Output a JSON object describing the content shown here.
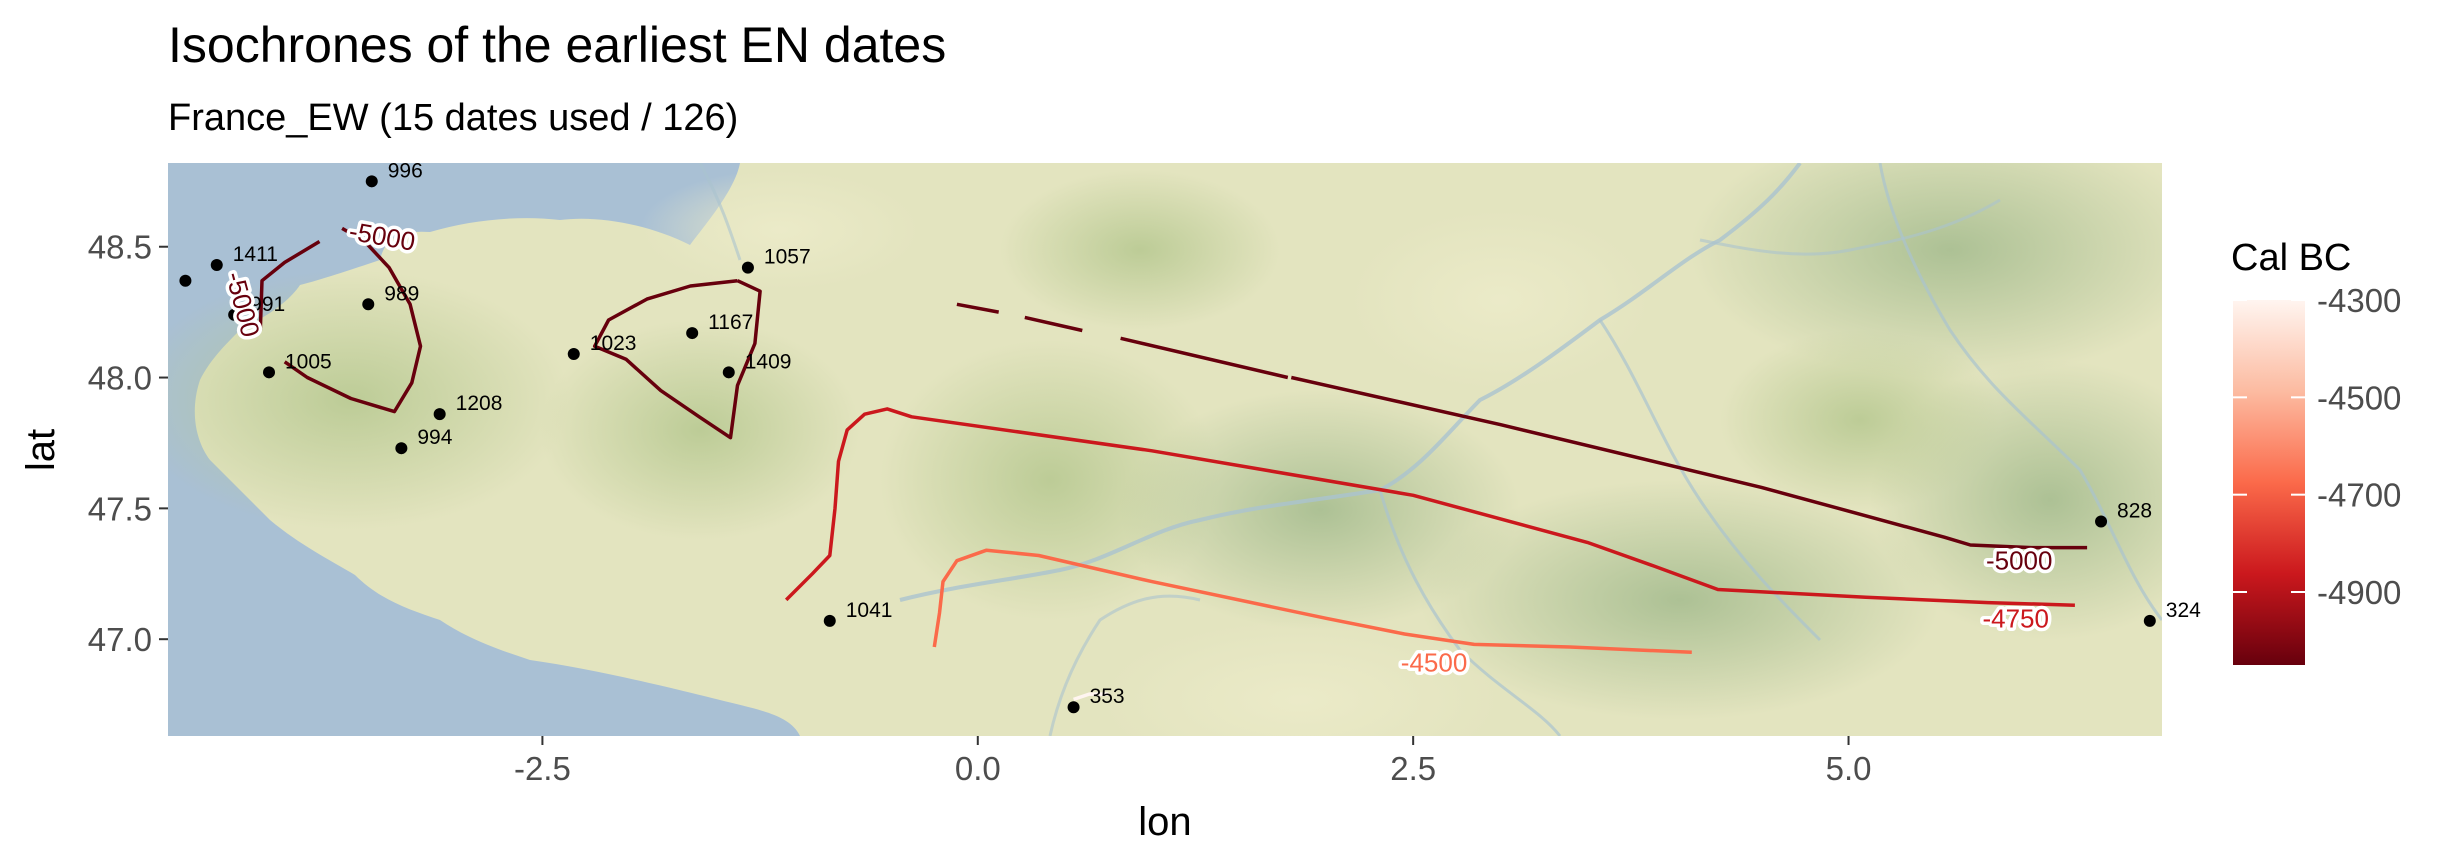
{
  "chart_data": {
    "type": "contour-map",
    "title": "Isochrones of the earliest EN dates",
    "subtitle": "France_EW (15 dates used / 126)",
    "xlabel": "lon",
    "ylabel": "lat",
    "xlim": [
      -4.65,
      6.8
    ],
    "ylim": [
      46.63,
      48.82
    ],
    "xticks": [
      -2.5,
      0.0,
      2.5,
      5.0
    ],
    "xtick_labels": [
      "-2.5",
      "0.0",
      "2.5",
      "5.0"
    ],
    "yticks": [
      47.0,
      47.5,
      48.0,
      48.5
    ],
    "ytick_labels": [
      "47.0",
      "47.5",
      "48.0",
      "48.5"
    ],
    "grid": false,
    "legend": {
      "title": "Cal BC",
      "placement": "right",
      "scale_min": -5050,
      "scale_max": -4300,
      "ticks": [
        -4300,
        -4500,
        -4700,
        -4900
      ],
      "tick_labels": [
        "-4300",
        "-4500",
        "-4700",
        "-4900"
      ],
      "colors": [
        "#67000d",
        "#cb181d",
        "#fb6a4a",
        "#fcbba1",
        "#fff5f0"
      ]
    },
    "sites": [
      {
        "label": "996",
        "lon": -3.48,
        "lat": 48.75
      },
      {
        "label": "1411",
        "lon": -4.37,
        "lat": 48.43
      },
      {
        "label": "",
        "lon": -4.55,
        "lat": 48.37
      },
      {
        "label": "991",
        "lon": -4.27,
        "lat": 48.24
      },
      {
        "label": "989",
        "lon": -3.5,
        "lat": 48.28
      },
      {
        "label": "1005",
        "lon": -4.07,
        "lat": 48.02
      },
      {
        "label": "1208",
        "lon": -3.09,
        "lat": 47.86
      },
      {
        "label": "994",
        "lon": -3.31,
        "lat": 47.73
      },
      {
        "label": "1023",
        "lon": -2.32,
        "lat": 48.09
      },
      {
        "label": "1167",
        "lon": -1.64,
        "lat": 48.17
      },
      {
        "label": "1409",
        "lon": -1.43,
        "lat": 48.02
      },
      {
        "label": "1057",
        "lon": -1.32,
        "lat": 48.42
      },
      {
        "label": "1041",
        "lon": -0.85,
        "lat": 47.07
      },
      {
        "label": "353",
        "lon": 0.55,
        "lat": 46.74
      },
      {
        "label": "828",
        "lon": 6.45,
        "lat": 47.45
      },
      {
        "label": "324",
        "lon": 6.73,
        "lat": 47.07
      }
    ],
    "contours": [
      {
        "level": -5000,
        "color": "#67000d",
        "lon": [
          -3.65,
          -3.52,
          -3.38,
          -3.26,
          -3.2,
          -3.25,
          -3.35,
          -3.6,
          -3.85,
          -3.98
        ],
        "lat": [
          48.57,
          48.52,
          48.42,
          48.28,
          48.12,
          47.98,
          47.87,
          47.92,
          48.0,
          48.06
        ]
      },
      {
        "level": -5000,
        "color": "#67000d",
        "lon": [
          -4.12,
          -4.11,
          -3.98,
          -3.78
        ],
        "lat": [
          48.18,
          48.37,
          48.44,
          48.52
        ]
      },
      {
        "level": -5000,
        "color": "#67000d",
        "lon": [
          -1.38,
          -1.25,
          -1.28,
          -1.38,
          -1.42,
          -1.6,
          -1.82,
          -2.02,
          -2.2,
          -2.12,
          -1.9,
          -1.65,
          -1.38
        ],
        "lat": [
          48.37,
          48.33,
          48.13,
          47.97,
          47.77,
          47.85,
          47.95,
          48.07,
          48.12,
          48.22,
          48.3,
          48.35,
          48.37
        ]
      },
      {
        "level": -5000,
        "color": "#67000d",
        "lon": [
          -0.12,
          0.12
        ],
        "lat": [
          48.28,
          48.25
        ]
      },
      {
        "level": -5000,
        "color": "#67000d",
        "lon": [
          0.27,
          0.6
        ],
        "lat": [
          48.23,
          48.18
        ]
      },
      {
        "level": -5000,
        "color": "#67000d",
        "lon": [
          0.82,
          1.78
        ],
        "lat": [
          48.15,
          48.0
        ]
      },
      {
        "level": -5000,
        "color": "#67000d",
        "lon": [
          1.8,
          3.0,
          4.5,
          5.55,
          5.7,
          6.05,
          6.37
        ],
        "lat": [
          48.0,
          47.82,
          47.58,
          47.39,
          47.36,
          47.35,
          47.35
        ]
      },
      {
        "level": -4750,
        "color": "#cb181d",
        "lon": [
          -1.1,
          -0.95,
          -0.85,
          -0.82,
          -0.8,
          -0.75,
          -0.65,
          -0.52,
          -0.38,
          1.0,
          2.5,
          3.5,
          3.88,
          4.25,
          5.1,
          5.8,
          6.3
        ],
        "lat": [
          47.15,
          47.25,
          47.32,
          47.5,
          47.68,
          47.8,
          47.86,
          47.88,
          47.85,
          47.72,
          47.55,
          47.37,
          47.28,
          47.19,
          47.16,
          47.14,
          47.13
        ]
      },
      {
        "level": -4500,
        "color": "#fb6a4a",
        "lon": [
          -0.25,
          -0.22,
          -0.2,
          -0.12,
          0.05,
          0.35,
          1.0,
          2.0,
          2.45,
          2.85,
          3.4,
          4.1
        ],
        "lat": [
          46.97,
          47.1,
          47.22,
          47.3,
          47.34,
          47.32,
          47.22,
          47.08,
          47.02,
          46.98,
          46.97,
          46.95
        ]
      },
      {
        "level": -4300,
        "color": "#fff5f0",
        "lon": [
          0.55,
          0.64,
          0.75
        ],
        "lat": [
          46.77,
          46.79,
          46.79
        ]
      }
    ],
    "contour_labels": [
      {
        "text": "-5000",
        "lon": -3.42,
        "lat": 48.54,
        "rotate": 10,
        "color": "#67000d"
      },
      {
        "text": "-5000",
        "lon": -4.22,
        "lat": 48.28,
        "rotate": 75,
        "color": "#67000d"
      },
      {
        "text": "-5000",
        "lon": 5.98,
        "lat": 47.3,
        "rotate": 0,
        "color": "#67000d"
      },
      {
        "text": "-4750",
        "lon": 5.96,
        "lat": 47.08,
        "rotate": 0,
        "color": "#cb181d"
      },
      {
        "text": "-4500",
        "lon": 2.62,
        "lat": 46.91,
        "rotate": 0,
        "color": "#fb6a4a"
      }
    ]
  }
}
